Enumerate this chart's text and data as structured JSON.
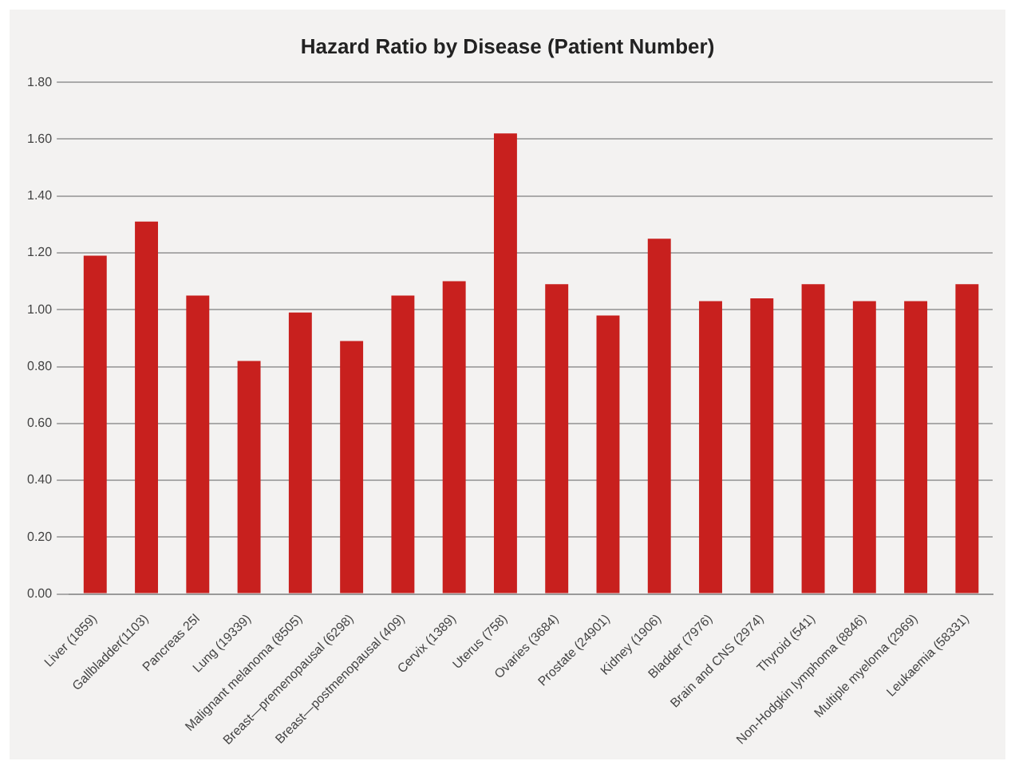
{
  "chart_data": {
    "type": "bar",
    "title": "Hazard Ratio by Disease (Patient Number)",
    "categories": [
      "Liver (1859)",
      "Gallbladder(1103)",
      "Pancreas 25l",
      "Lung (19339)",
      "Malignant melanoma (8505)",
      "Breast—premenopausal (6298)",
      "Breast—postmenopausal (409)",
      "Cervix (1389)",
      "Uterus (758)",
      "Ovaries (3684)",
      "Prostate (24901)",
      "Kidney (1906)",
      "Bladder (7976)",
      "Brain and CNS (2974)",
      "Thyroid (541)",
      "Non-Hodgkin lymphoma (8846)",
      "Multiple myeloma (2969)",
      "Leukaemia (58331)"
    ],
    "values": [
      1.19,
      1.31,
      1.05,
      0.82,
      0.99,
      0.89,
      1.05,
      1.1,
      1.62,
      1.09,
      0.98,
      1.25,
      1.03,
      1.04,
      1.09,
      1.03,
      1.03,
      1.09
    ],
    "color": "#c8201e",
    "ylim": [
      0,
      1.8
    ],
    "yticks": [
      {
        "value": 0,
        "label": "0.00"
      },
      {
        "value": 0.2,
        "label": "0.20"
      },
      {
        "value": 0.4,
        "label": "0.40"
      },
      {
        "value": 0.6,
        "label": "0.60"
      },
      {
        "value": 0.8,
        "label": "0.80"
      },
      {
        "value": 1.0,
        "label": "1.00"
      },
      {
        "value": 1.2,
        "label": "1.20"
      },
      {
        "value": 1.4,
        "label": "1.40"
      },
      {
        "value": 1.6,
        "label": "1.60"
      },
      {
        "value": 1.8,
        "label": "1.80"
      }
    ],
    "grid": "y"
  }
}
